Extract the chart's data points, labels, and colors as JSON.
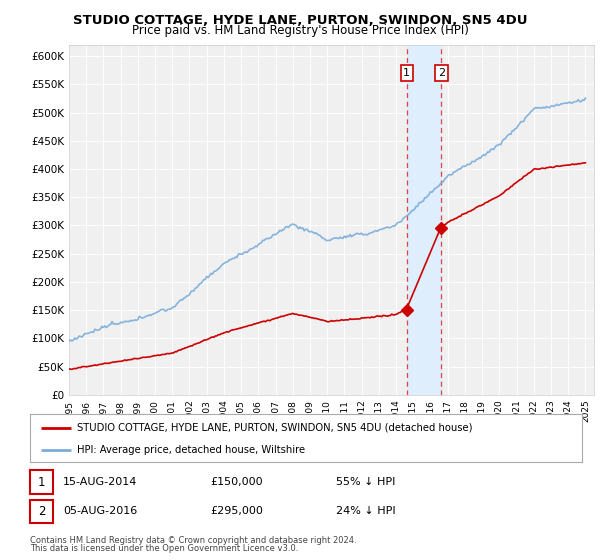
{
  "title": "STUDIO COTTAGE, HYDE LANE, PURTON, SWINDON, SN5 4DU",
  "subtitle": "Price paid vs. HM Land Registry's House Price Index (HPI)",
  "red_label": "STUDIO COTTAGE, HYDE LANE, PURTON, SWINDON, SN5 4DU (detached house)",
  "blue_label": "HPI: Average price, detached house, Wiltshire",
  "transaction1": {
    "date": "15-AUG-2014",
    "price": 150000,
    "label": "1",
    "year": 2014.625
  },
  "transaction2": {
    "date": "05-AUG-2016",
    "price": 295000,
    "label": "2",
    "year": 2016.625
  },
  "t1_note": "55% ↓ HPI",
  "t2_note": "24% ↓ HPI",
  "ylim": [
    0,
    620000
  ],
  "yticks": [
    0,
    50000,
    100000,
    150000,
    200000,
    250000,
    300000,
    350000,
    400000,
    450000,
    500000,
    550000,
    600000
  ],
  "xlim_start": 1995,
  "xlim_end": 2025.5,
  "background_color": "#ffffff",
  "plot_bg_color": "#f0f0f0",
  "red_color": "#cc0000",
  "blue_color": "#7aadda",
  "shade_color": "#ddeeff",
  "grid_color": "#ffffff",
  "footer1": "Contains HM Land Registry data © Crown copyright and database right 2024.",
  "footer2": "This data is licensed under the Open Government Licence v3.0."
}
